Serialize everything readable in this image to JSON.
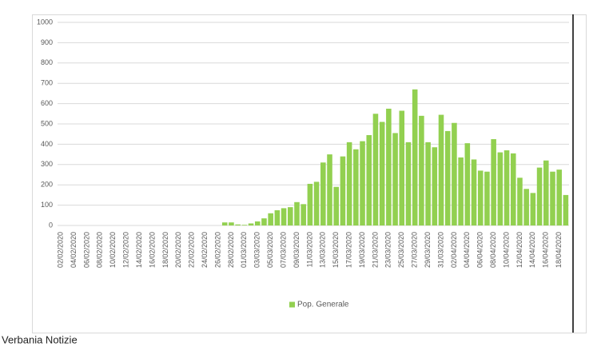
{
  "chart_data": {
    "type": "bar",
    "categories": [
      "02/02/2020",
      null,
      "04/02/2020",
      null,
      "06/02/2020",
      null,
      "08/02/2020",
      null,
      "10/02/2020",
      null,
      "12/02/2020",
      null,
      "14/02/2020",
      null,
      "16/02/2020",
      null,
      "18/02/2020",
      null,
      "20/02/2020",
      null,
      "22/02/2020",
      null,
      "24/02/2020",
      null,
      "26/02/2020",
      null,
      "28/02/2020",
      null,
      "01/03/2020",
      null,
      "03/03/2020",
      null,
      "05/03/2020",
      null,
      "07/03/2020",
      null,
      "09/03/2020",
      null,
      "11/03/2020",
      null,
      "13/03/2020",
      null,
      "15/03/2020",
      null,
      "17/03/2020",
      null,
      "19/03/2020",
      null,
      "21/03/2020",
      null,
      "23/03/2020",
      null,
      "25/03/2020",
      null,
      "27/03/2020",
      null,
      "29/03/2020",
      null,
      "31/03/2020",
      null,
      "02/04/2020",
      null,
      "04/04/2020",
      null,
      "06/04/2020",
      null,
      "08/04/2020",
      null,
      "10/04/2020",
      null,
      "12/04/2020",
      null,
      "14/04/2020",
      null,
      "16/04/2020",
      null,
      "18/04/2020",
      null
    ],
    "series": [
      {
        "name": "Pop. Generale",
        "color": "#92d050",
        "values": [
          0,
          0,
          0,
          0,
          0,
          0,
          0,
          0,
          0,
          0,
          0,
          0,
          0,
          0,
          0,
          0,
          0,
          0,
          0,
          0,
          0,
          0,
          0,
          0,
          0,
          15,
          15,
          5,
          3,
          10,
          20,
          35,
          60,
          75,
          85,
          90,
          115,
          105,
          205,
          215,
          310,
          350,
          190,
          340,
          410,
          375,
          415,
          445,
          550,
          510,
          575,
          455,
          565,
          410,
          670,
          540,
          410,
          385,
          545,
          465,
          505,
          335,
          405,
          325,
          270,
          265,
          425,
          360,
          370,
          355,
          235,
          180,
          160,
          285,
          320,
          265,
          275,
          150
        ]
      }
    ],
    "ylim": [
      0,
      1000
    ],
    "yticks": [
      0,
      100,
      200,
      300,
      400,
      500,
      600,
      700,
      800,
      900,
      1000
    ],
    "grid": true,
    "legend": "bottom"
  },
  "footer": "Verbania Notizie"
}
